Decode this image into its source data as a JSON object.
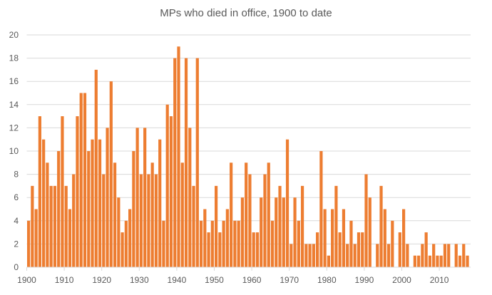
{
  "chart_data": {
    "type": "bar",
    "title": "MPs who died in office, 1900 to date",
    "xlabel": "",
    "ylabel": "",
    "x_start": 1900,
    "x_end": 2017,
    "x_tick_labels": [
      "1900",
      "1910",
      "1920",
      "1930",
      "1940",
      "1950",
      "1960",
      "1970",
      "1980",
      "1990",
      "2000",
      "2010"
    ],
    "y_tick_labels": [
      "0",
      "2",
      "4",
      "6",
      "8",
      "10",
      "12",
      "14",
      "16",
      "18",
      "20"
    ],
    "ylim": [
      0,
      20
    ],
    "grid": true,
    "bar_color": "#ED7D31",
    "grid_color": "#D9D9D9",
    "values": [
      4,
      7,
      5,
      13,
      11,
      9,
      7,
      7,
      10,
      13,
      7,
      5,
      8,
      13,
      15,
      15,
      10,
      11,
      17,
      11,
      8,
      12,
      16,
      9,
      6,
      3,
      4,
      5,
      10,
      12,
      8,
      12,
      8,
      9,
      8,
      11,
      4,
      14,
      13,
      18,
      19,
      9,
      18,
      12,
      7,
      18,
      4,
      5,
      3,
      4,
      7,
      3,
      4,
      5,
      9,
      4,
      4,
      6,
      9,
      8,
      3,
      3,
      6,
      8,
      9,
      4,
      6,
      7,
      6,
      11,
      2,
      6,
      4,
      7,
      2,
      2,
      2,
      3,
      10,
      5,
      1,
      5,
      7,
      3,
      5,
      2,
      4,
      2,
      3,
      3,
      8,
      6,
      0,
      2,
      7,
      5,
      2,
      4,
      0,
      3,
      5,
      2,
      0,
      1,
      1,
      2,
      3,
      1,
      2,
      1,
      1,
      2,
      2,
      0,
      2,
      1,
      2,
      1
    ]
  }
}
